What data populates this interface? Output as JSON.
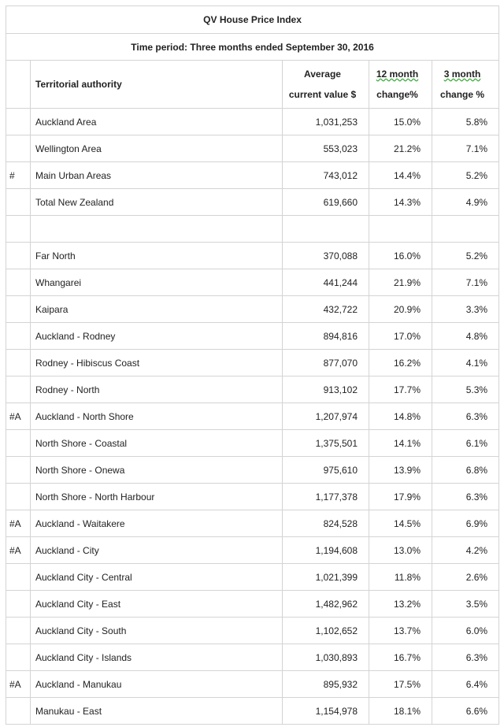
{
  "title": "QV House Price Index",
  "period": "Time period: Three months ended September 30, 2016",
  "header": {
    "name": "Territorial authority",
    "avg_1": "Average",
    "avg_2": "current value $",
    "m12_1": "12 month",
    "m12_2": "change%",
    "m3_1": "3 month",
    "m3_2": "change %"
  },
  "summary": [
    {
      "name": "Auckland Area",
      "avg": "1,031,253",
      "m12": "15.0%",
      "m3": "5.8%"
    },
    {
      "name": "Wellington Area",
      "avg": "553,023",
      "m12": "21.2%",
      "m3": "7.1%"
    },
    {
      "marker": "#",
      "name": "Main Urban Areas",
      "avg": "743,012",
      "m12": "14.4%",
      "m3": "5.2%"
    },
    {
      "name": "Total New Zealand",
      "avg": "619,660",
      "m12": "14.3%",
      "m3": "4.9%"
    }
  ],
  "regions": [
    {
      "name": "Far North",
      "avg": "370,088",
      "m12": "16.0%",
      "m3": "5.2%"
    },
    {
      "name": "Whangarei",
      "avg": "441,244",
      "m12": "21.9%",
      "m3": "7.1%"
    },
    {
      "name": "Kaipara",
      "avg": "432,722",
      "m12": "20.9%",
      "m3": "3.3%"
    },
    {
      "name": "Auckland - Rodney",
      "avg": "894,816",
      "m12": "17.0%",
      "m3": "4.8%"
    },
    {
      "name": "Rodney - Hibiscus Coast",
      "avg": "877,070",
      "m12": "16.2%",
      "m3": "4.1%"
    },
    {
      "name": "Rodney - North",
      "avg": "913,102",
      "m12": "17.7%",
      "m3": "5.3%"
    },
    {
      "marker": "#A",
      "name": "Auckland - North Shore",
      "avg": "1,207,974",
      "m12": "14.8%",
      "m3": "6.3%"
    },
    {
      "name": "North Shore - Coastal",
      "avg": "1,375,501",
      "m12": "14.1%",
      "m3": "6.1%"
    },
    {
      "name": "North Shore - Onewa",
      "avg": "975,610",
      "m12": "13.9%",
      "m3": "6.8%"
    },
    {
      "name": "North Shore - North Harbour",
      "avg": "1,177,378",
      "m12": "17.9%",
      "m3": "6.3%"
    },
    {
      "marker": "#A",
      "name": "Auckland - Waitakere",
      "avg": "824,528",
      "m12": "14.5%",
      "m3": "6.9%"
    },
    {
      "marker": "#A",
      "name": "Auckland - City",
      "avg": "1,194,608",
      "m12": "13.0%",
      "m3": "4.2%"
    },
    {
      "name": "Auckland City - Central",
      "avg": "1,021,399",
      "m12": "11.8%",
      "m3": "2.6%"
    },
    {
      "name": "Auckland City - East",
      "avg": "1,482,962",
      "m12": "13.2%",
      "m3": "3.5%"
    },
    {
      "name": "Auckland City - South",
      "avg": "1,102,652",
      "m12": "13.7%",
      "m3": "6.0%"
    },
    {
      "name": "Auckland City - Islands",
      "avg": "1,030,893",
      "m12": "16.7%",
      "m3": "6.3%"
    },
    {
      "marker": "#A",
      "name": "Auckland - Manukau",
      "avg": "895,932",
      "m12": "17.5%",
      "m3": "6.4%"
    },
    {
      "name": "Manukau - East",
      "avg": "1,154,978",
      "m12": "18.1%",
      "m3": "6.6%"
    }
  ]
}
